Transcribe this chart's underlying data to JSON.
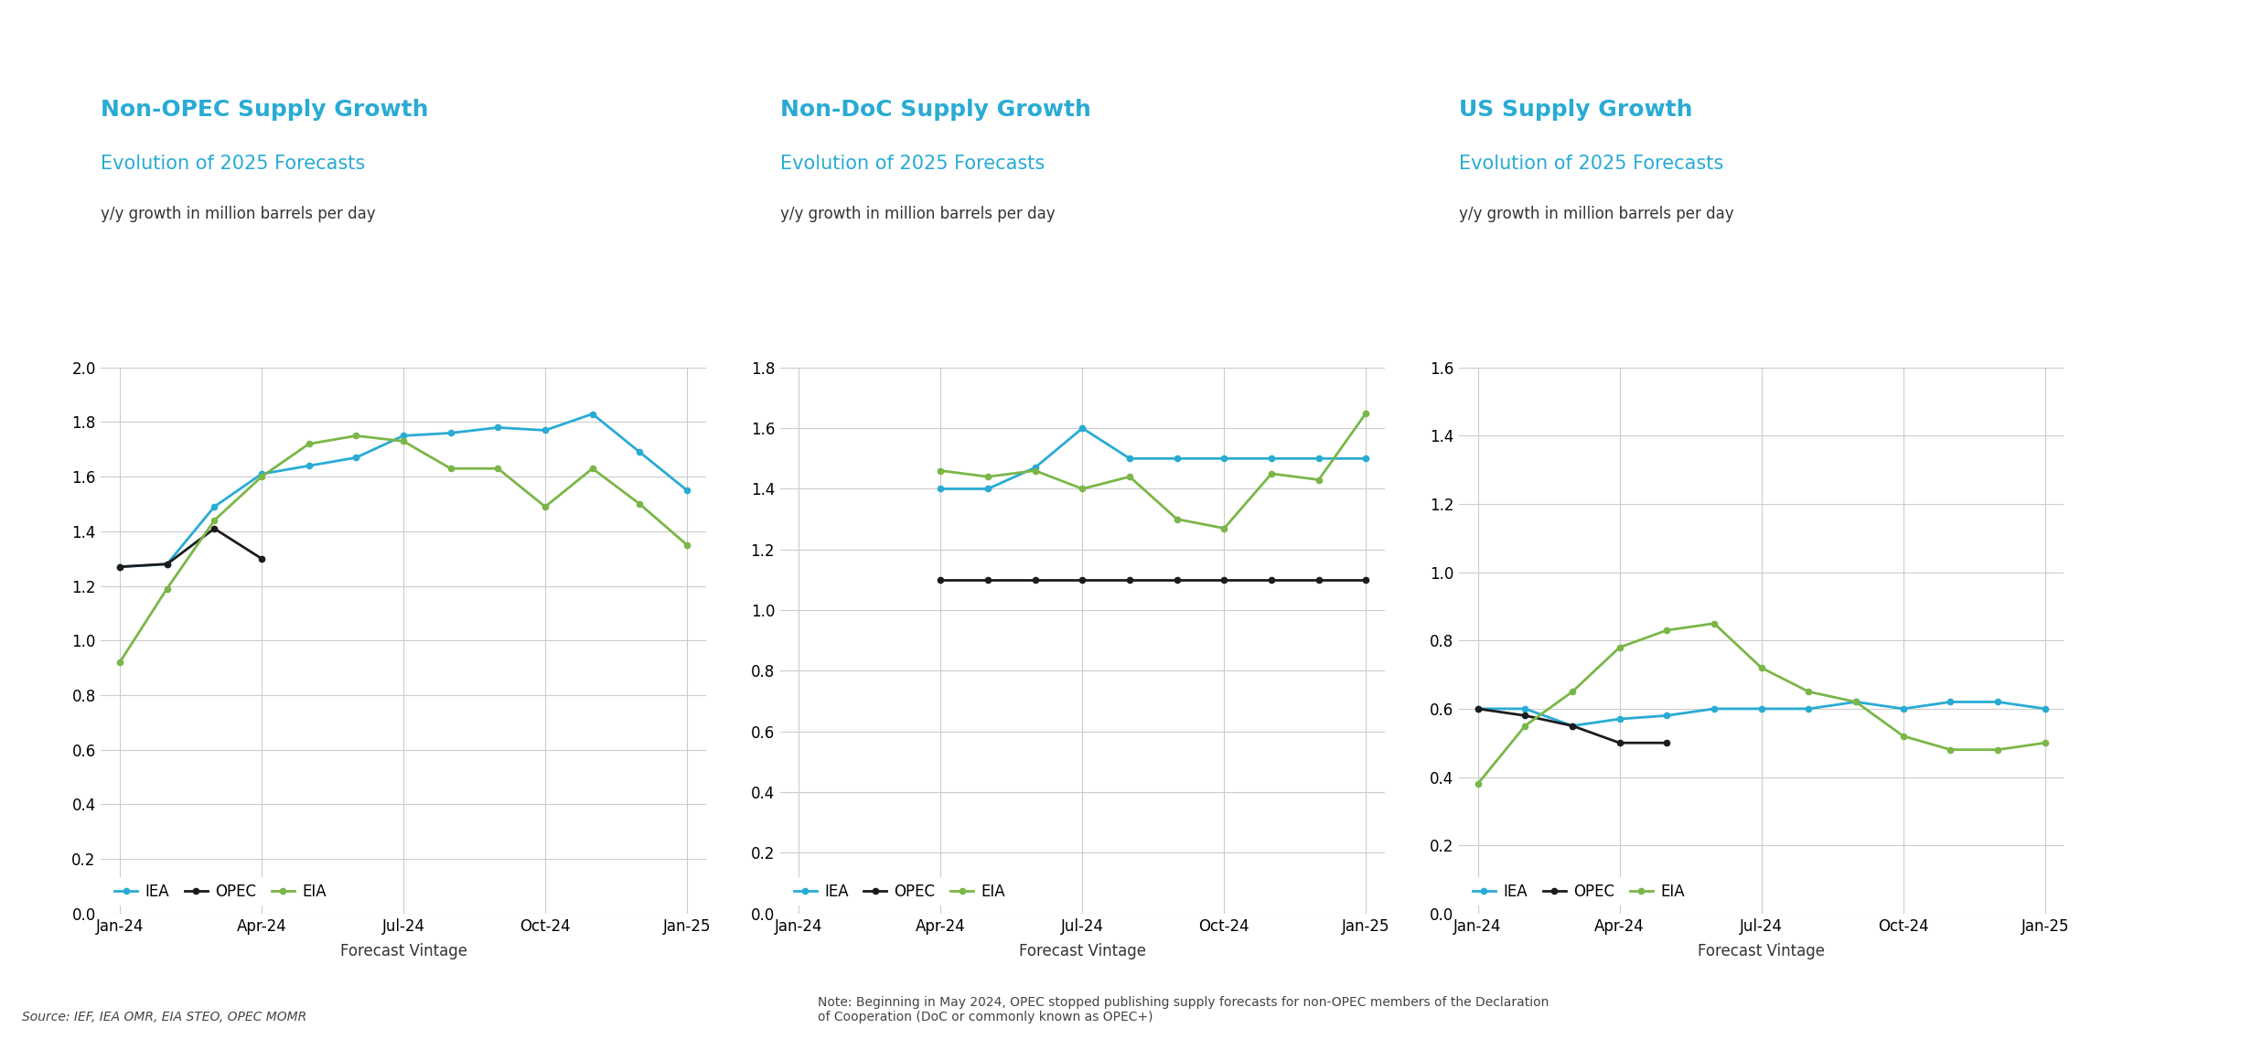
{
  "charts": [
    {
      "title": "Non-OPEC Supply Growth",
      "subtitle": "Evolution of 2025 Forecasts",
      "ylabel": "y/y growth in million barrels per day",
      "ylim": [
        0.0,
        2.0
      ],
      "yticks": [
        0.0,
        0.2,
        0.4,
        0.6,
        0.8,
        1.0,
        1.2,
        1.4,
        1.6,
        1.8,
        2.0
      ],
      "series": {
        "IEA": {
          "color": "#29ABD4",
          "values": [
            1.27,
            1.28,
            1.49,
            1.61,
            1.64,
            1.67,
            1.75,
            1.76,
            1.78,
            1.77,
            1.83,
            1.69,
            1.55
          ]
        },
        "OPEC": {
          "color": "#1C1C1C",
          "values": [
            1.27,
            1.28,
            1.41,
            1.3,
            null,
            null,
            null,
            null,
            null,
            null,
            null,
            null,
            null
          ]
        },
        "EIA": {
          "color": "#7AB648",
          "values": [
            0.92,
            1.19,
            1.44,
            1.6,
            1.72,
            1.75,
            1.73,
            1.63,
            1.63,
            1.49,
            1.63,
            1.5,
            1.35
          ]
        }
      }
    },
    {
      "title": "Non-DoC Supply Growth",
      "subtitle": "Evolution of 2025 Forecasts",
      "ylabel": "y/y growth in million barrels per day",
      "ylim": [
        0.0,
        1.8
      ],
      "yticks": [
        0.0,
        0.2,
        0.4,
        0.6,
        0.8,
        1.0,
        1.2,
        1.4,
        1.6,
        1.8
      ],
      "series": {
        "IEA": {
          "color": "#29ABD4",
          "values": [
            null,
            null,
            null,
            1.4,
            1.4,
            1.47,
            1.6,
            1.5,
            1.5,
            1.5,
            1.5,
            1.5,
            1.5
          ]
        },
        "OPEC": {
          "color": "#1C1C1C",
          "values": [
            null,
            null,
            null,
            1.1,
            1.1,
            1.1,
            1.1,
            1.1,
            1.1,
            1.1,
            1.1,
            1.1,
            1.1
          ]
        },
        "EIA": {
          "color": "#7AB648",
          "values": [
            null,
            null,
            null,
            1.46,
            1.44,
            1.46,
            1.4,
            1.44,
            1.3,
            1.27,
            1.45,
            1.43,
            1.65
          ]
        }
      }
    },
    {
      "title": "US Supply Growth",
      "subtitle": "Evolution of 2025 Forecasts",
      "ylabel": "y/y growth in million barrels per day",
      "ylim": [
        0.0,
        1.6
      ],
      "yticks": [
        0.0,
        0.2,
        0.4,
        0.6,
        0.8,
        1.0,
        1.2,
        1.4,
        1.6
      ],
      "series": {
        "IEA": {
          "color": "#29ABD4",
          "values": [
            0.6,
            0.6,
            0.55,
            0.57,
            0.58,
            0.6,
            0.6,
            0.6,
            0.62,
            0.6,
            0.62,
            0.62,
            0.6
          ]
        },
        "OPEC": {
          "color": "#1C1C1C",
          "values": [
            0.6,
            0.58,
            0.55,
            0.5,
            0.5,
            null,
            null,
            null,
            null,
            null,
            null,
            null,
            null
          ]
        },
        "EIA": {
          "color": "#7AB648",
          "values": [
            0.38,
            0.55,
            0.65,
            0.78,
            0.83,
            0.85,
            0.72,
            0.65,
            0.62,
            0.52,
            0.48,
            0.48,
            0.5
          ]
        }
      }
    }
  ],
  "n_points": 13,
  "x_tick_positions": [
    0,
    3,
    6,
    9,
    12
  ],
  "x_tick_labels": [
    "Jan-24",
    "Apr-24",
    "Jul-24",
    "Oct-24",
    "Jan-25"
  ],
  "xlabel": "Forecast Vintage",
  "title_color": "#29ABD4",
  "subtitle_color": "#29ABD4",
  "ylabel_color": "#333333",
  "grid_color": "#CCCCCC",
  "legend_labels": [
    "IEA",
    "OPEC",
    "EIA"
  ],
  "legend_colors": [
    "#29ABD4",
    "#1C1C1C",
    "#7AB648"
  ],
  "source_text": "Source: IEF, IEA OMR, EIA STEO, OPEC MOMR",
  "note_text": "Note: Beginning in May 2024, OPEC stopped publishing supply forecasts for non-OPEC members of the Declaration\nof Cooperation (DoC or commonly known as OPEC+)",
  "background_color": "#FFFFFF",
  "title_fontsize": 18,
  "subtitle_fontsize": 15,
  "ylabel_fontsize": 12,
  "tick_fontsize": 12,
  "legend_fontsize": 12,
  "source_fontsize": 10,
  "note_fontsize": 10
}
